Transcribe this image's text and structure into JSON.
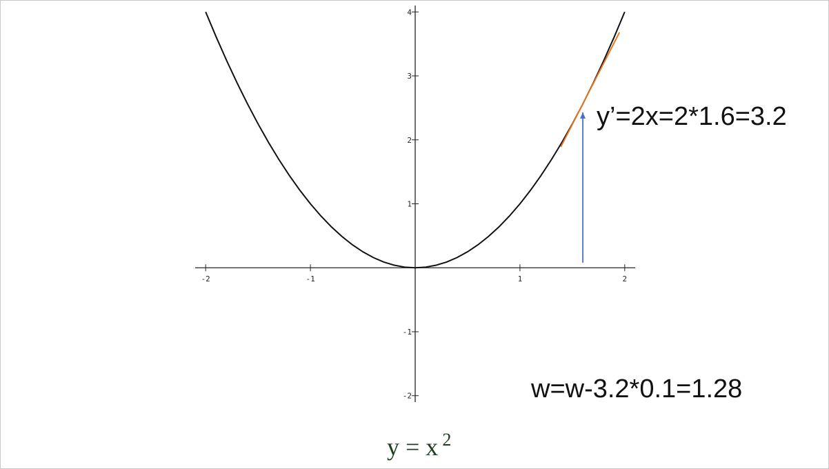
{
  "chart_data": {
    "type": "line",
    "x": [
      -2,
      -1.9,
      -1.8,
      -1.7,
      -1.6,
      -1.5,
      -1.4,
      -1.3,
      -1.2,
      -1.1,
      -1,
      -0.9,
      -0.8,
      -0.7,
      -0.6,
      -0.5,
      -0.4,
      -0.3,
      -0.2,
      -0.1,
      0,
      0.1,
      0.2,
      0.3,
      0.4,
      0.5,
      0.6,
      0.7,
      0.8,
      0.9,
      1,
      1.1,
      1.2,
      1.3,
      1.4,
      1.5,
      1.6,
      1.7,
      1.8,
      1.9,
      2
    ],
    "series": [
      {
        "color": "#111111",
        "values": [
          4,
          3.61,
          3.24,
          2.89,
          2.56,
          2.25,
          1.96,
          1.69,
          1.44,
          1.21,
          1,
          0.81,
          0.64,
          0.49,
          0.36,
          0.25,
          0.16,
          0.09,
          0.04,
          0.01,
          0,
          0.01,
          0.04,
          0.09,
          0.16,
          0.25,
          0.36,
          0.49,
          0.64,
          0.81,
          1,
          1.21,
          1.44,
          1.69,
          1.96,
          2.25,
          2.56,
          2.89,
          3.24,
          3.61,
          4
        ]
      }
    ],
    "tangent": {
      "color": "#e87722",
      "x": [
        1.39,
        1.95
      ],
      "y": [
        1.89,
        3.68
      ]
    },
    "arrow": {
      "color": "#4472c4",
      "x": [
        1.6,
        1.6
      ],
      "y": [
        0.08,
        2.43
      ]
    },
    "xlim": [
      -2.1,
      2.1
    ],
    "ylim": [
      -2.1,
      4.1
    ],
    "xticks": [
      -2,
      -1,
      1,
      2
    ],
    "yticks": [
      -2,
      -1,
      1,
      2,
      3,
      4
    ],
    "annotations": [
      "y’=2x=2*1.6=3.2",
      "w=w-3.2*0.1=1.28"
    ],
    "caption": "y = x",
    "caption_exponent": "2"
  }
}
